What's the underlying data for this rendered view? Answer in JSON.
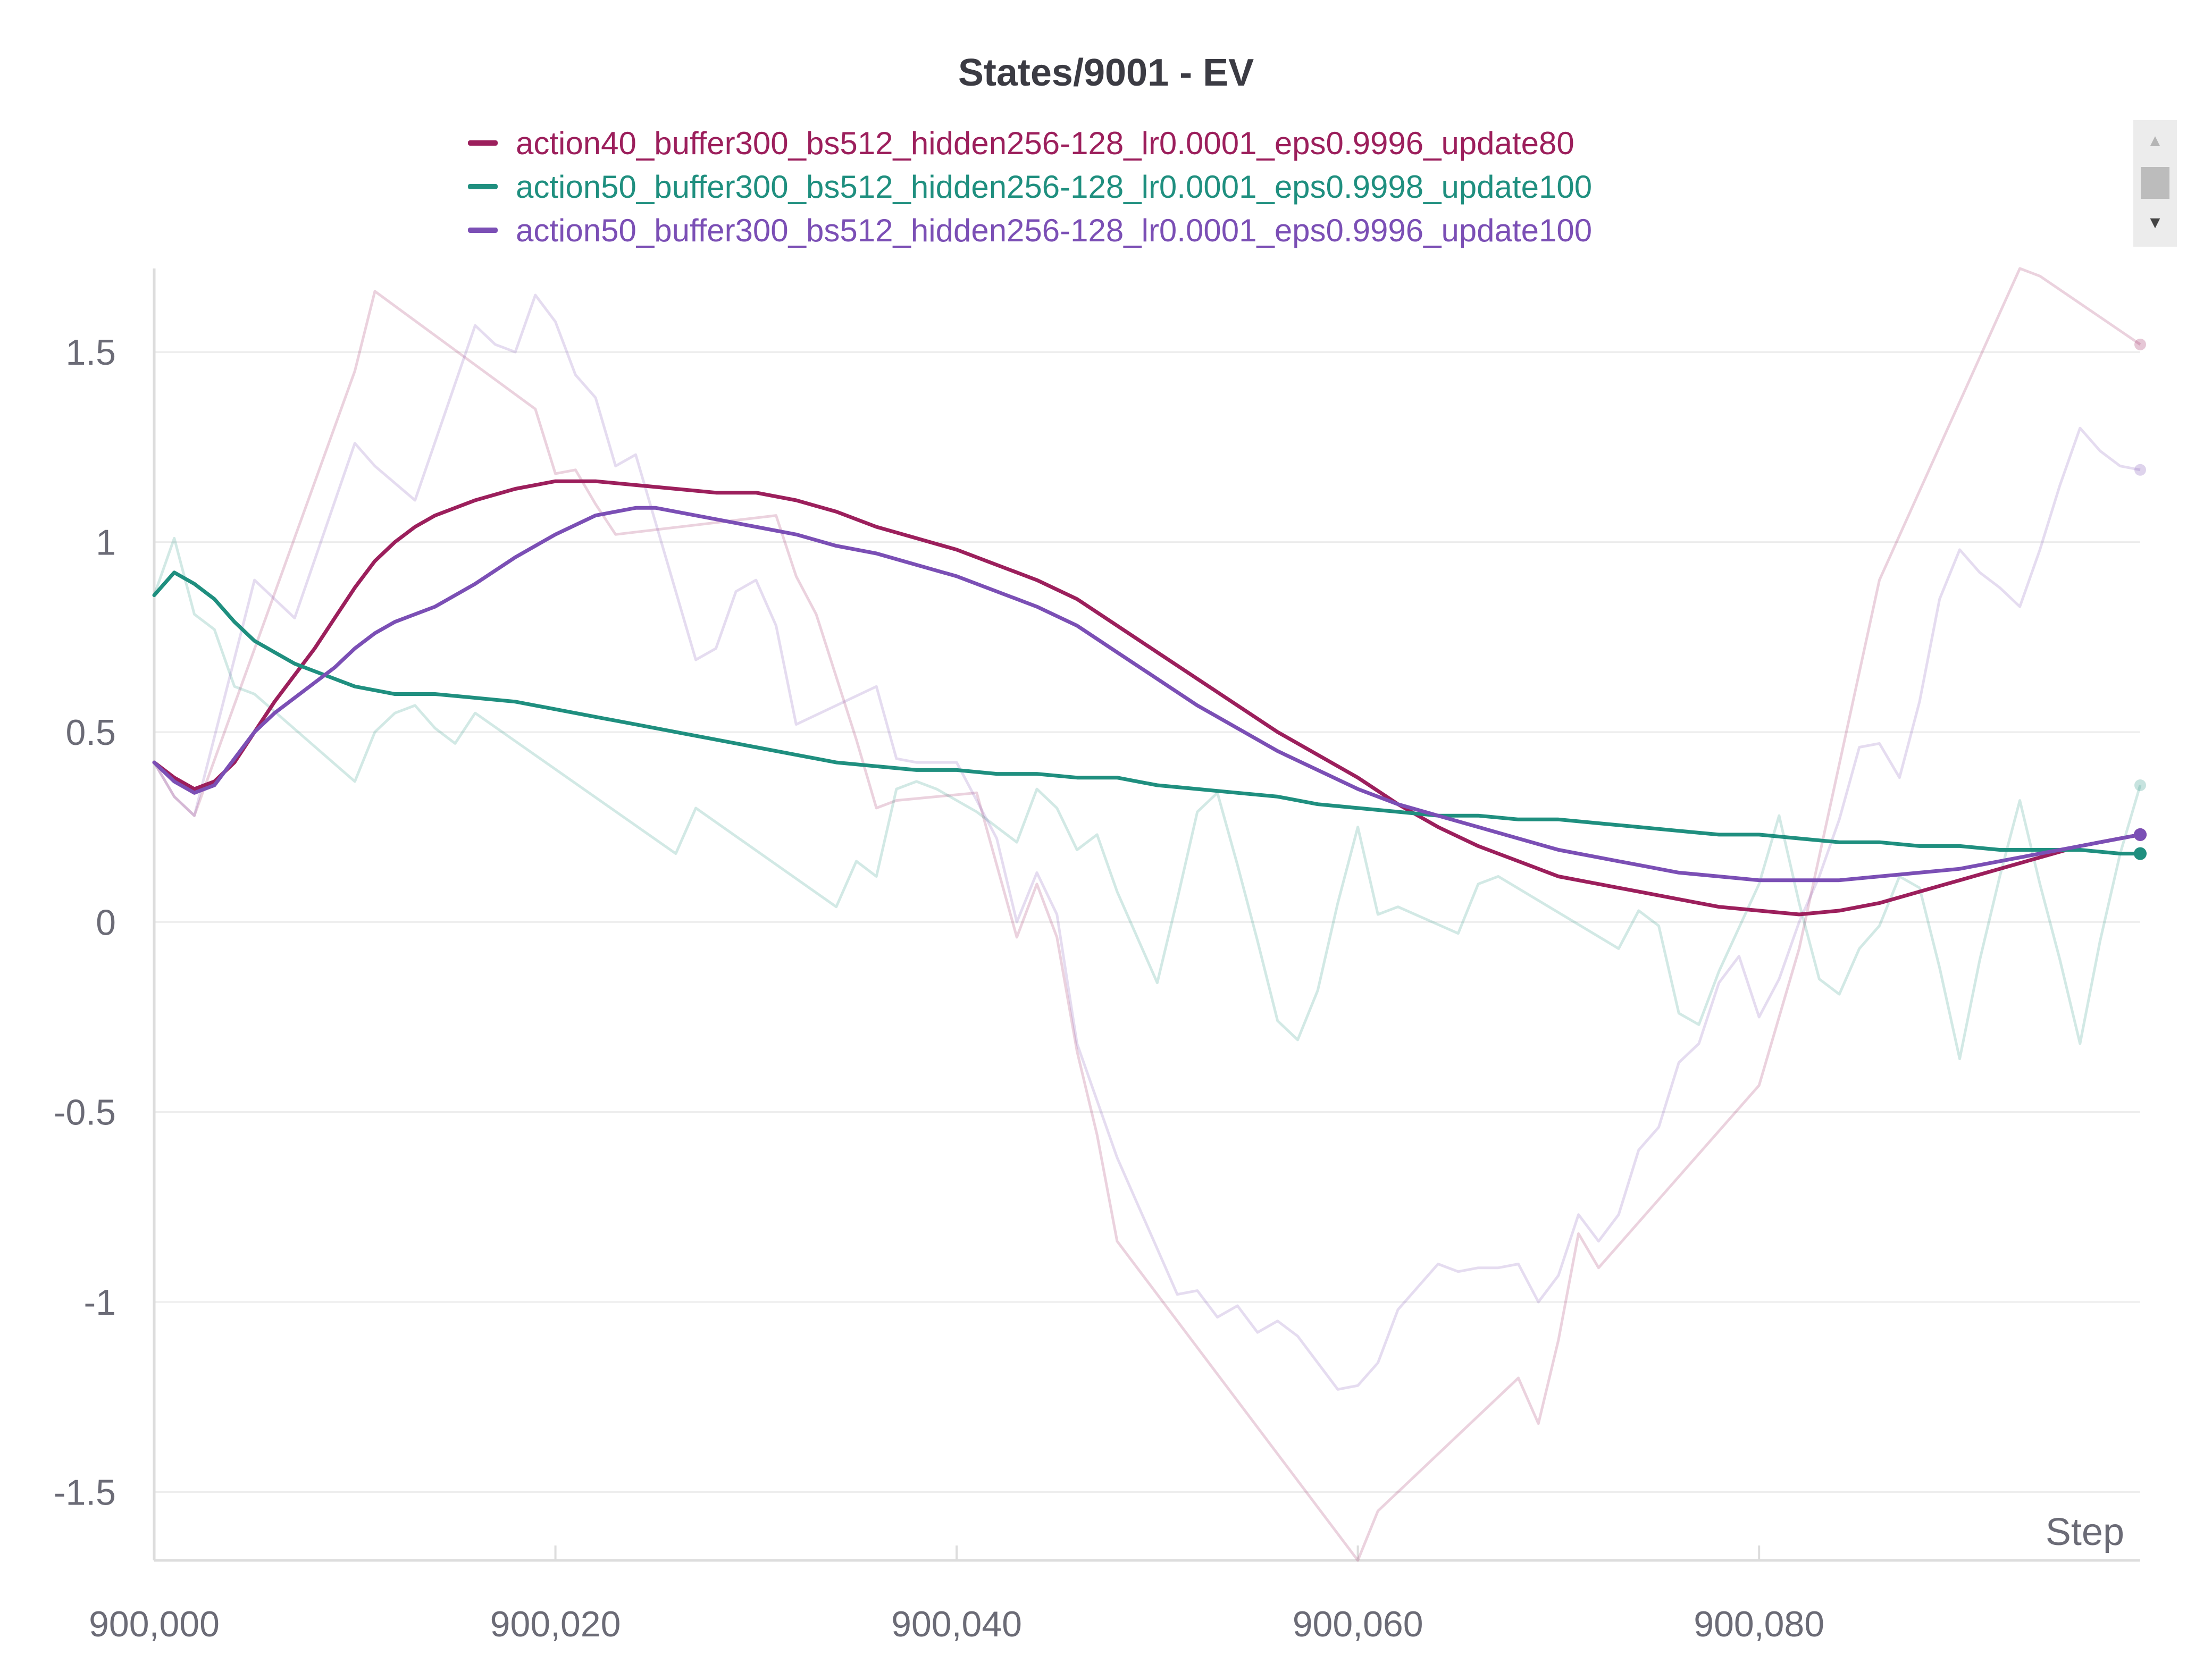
{
  "chart_data": {
    "type": "line",
    "title": "States/9001 - EV",
    "xlabel": "Step",
    "ylabel": "",
    "xlim": [
      900000,
      900099
    ],
    "ylim": [
      -1.68,
      1.72
    ],
    "grid": true,
    "legend_position": "top-center",
    "x_ticks": [
      900000,
      900020,
      900040,
      900060,
      900080
    ],
    "x_tick_labels": [
      "900,000",
      "900,020",
      "900,040",
      "900,060",
      "900,080"
    ],
    "y_ticks": [
      1.5,
      1,
      0.5,
      0,
      -0.5,
      -1,
      -1.5
    ],
    "y_tick_labels": [
      "1.5",
      "1",
      "0.5",
      "0",
      "-0.5",
      "-1",
      "-1.5"
    ],
    "series": [
      {
        "name": "action40_buffer300_bs512_hidden256-128_lr0.0001_eps0.9996_update80",
        "color": "#9c1f5c",
        "raw": {
          "x": [
            900000,
            900001,
            900002,
            900010,
            900011,
            900019,
            900020,
            900021,
            900022,
            900023,
            900031,
            900032,
            900033,
            900035,
            900036,
            900037,
            900041,
            900043,
            900044,
            900045,
            900046,
            900047,
            900048,
            900060,
            900061,
            900068,
            900069,
            900070,
            900071,
            900072,
            900073,
            900080,
            900082,
            900086,
            900093,
            900094,
            900099
          ],
          "y": [
            0.42,
            0.33,
            0.28,
            1.45,
            1.66,
            1.35,
            1.18,
            1.19,
            1.1,
            1.02,
            1.07,
            0.91,
            0.81,
            0.48,
            0.3,
            0.32,
            0.34,
            -0.04,
            0.1,
            -0.04,
            -0.34,
            -0.56,
            -0.84,
            -1.68,
            -1.55,
            -1.2,
            -1.32,
            -1.1,
            -0.82,
            -0.91,
            -0.85,
            -0.43,
            -0.07,
            0.9,
            1.72,
            1.7,
            1.52
          ]
        },
        "smoothed": {
          "x": [
            900000,
            900001,
            900002,
            900003,
            900004,
            900005,
            900006,
            900007,
            900008,
            900009,
            900010,
            900011,
            900012,
            900013,
            900014,
            900016,
            900018,
            900020,
            900022,
            900024,
            900026,
            900028,
            900030,
            900032,
            900034,
            900036,
            900038,
            900040,
            900042,
            900044,
            900046,
            900048,
            900050,
            900052,
            900054,
            900056,
            900058,
            900060,
            900062,
            900064,
            900066,
            900068,
            900070,
            900072,
            900074,
            900076,
            900078,
            900080,
            900082,
            900084,
            900086,
            900088,
            900090,
            900092,
            900094,
            900096,
            900099
          ],
          "y": [
            0.42,
            0.38,
            0.35,
            0.37,
            0.42,
            0.5,
            0.58,
            0.65,
            0.72,
            0.8,
            0.88,
            0.95,
            1.0,
            1.04,
            1.07,
            1.11,
            1.14,
            1.16,
            1.16,
            1.15,
            1.14,
            1.13,
            1.13,
            1.11,
            1.08,
            1.04,
            1.01,
            0.98,
            0.94,
            0.9,
            0.85,
            0.78,
            0.71,
            0.64,
            0.57,
            0.5,
            0.44,
            0.38,
            0.31,
            0.25,
            0.2,
            0.16,
            0.12,
            0.1,
            0.08,
            0.06,
            0.04,
            0.03,
            0.02,
            0.03,
            0.05,
            0.08,
            0.11,
            0.14,
            0.17,
            0.2,
            0.23
          ]
        }
      },
      {
        "name": "action50_buffer300_bs512_hidden256-128_lr0.0001_eps0.9998_update100",
        "color": "#1f8f7f",
        "raw": {
          "x": [
            900000,
            900001,
            900002,
            900003,
            900004,
            900005,
            900010,
            900011,
            900012,
            900013,
            900014,
            900015,
            900016,
            900026,
            900027,
            900034,
            900035,
            900036,
            900037,
            900038,
            900039,
            900041,
            900042,
            900043,
            900044,
            900045,
            900046,
            900047,
            900048,
            900050,
            900051,
            900052,
            900053,
            900054,
            900055,
            900056,
            900057,
            900058,
            900059,
            900060,
            900061,
            900062,
            900065,
            900066,
            900067,
            900073,
            900074,
            900075,
            900076,
            900077,
            900078,
            900080,
            900081,
            900082,
            900083,
            900084,
            900085,
            900086,
            900087,
            900088,
            900089,
            900090,
            900091,
            900092,
            900093,
            900094,
            900095,
            900096,
            900097,
            900098,
            900099
          ],
          "y": [
            0.86,
            1.01,
            0.81,
            0.77,
            0.62,
            0.6,
            0.37,
            0.5,
            0.55,
            0.57,
            0.51,
            0.47,
            0.55,
            0.18,
            0.3,
            0.04,
            0.16,
            0.12,
            0.35,
            0.37,
            0.35,
            0.29,
            0.25,
            0.21,
            0.35,
            0.3,
            0.19,
            0.23,
            0.08,
            -0.16,
            0.06,
            0.29,
            0.34,
            0.15,
            -0.05,
            -0.26,
            -0.31,
            -0.18,
            0.05,
            0.25,
            0.02,
            0.04,
            -0.03,
            0.1,
            0.12,
            -0.07,
            0.03,
            -0.01,
            -0.24,
            -0.27,
            -0.13,
            0.1,
            0.28,
            0.05,
            -0.15,
            -0.19,
            -0.07,
            -0.01,
            0.12,
            0.09,
            -0.12,
            -0.36,
            -0.1,
            0.12,
            0.32,
            0.1,
            -0.1,
            -0.32,
            -0.05,
            0.18,
            0.36
          ]
        },
        "smoothed": {
          "x": [
            900000,
            900001,
            900002,
            900003,
            900004,
            900005,
            900006,
            900007,
            900008,
            900009,
            900010,
            900011,
            900012,
            900014,
            900016,
            900018,
            900020,
            900022,
            900024,
            900026,
            900028,
            900030,
            900032,
            900034,
            900036,
            900038,
            900040,
            900042,
            900044,
            900046,
            900048,
            900050,
            900052,
            900054,
            900056,
            900058,
            900060,
            900062,
            900064,
            900066,
            900068,
            900070,
            900072,
            900074,
            900076,
            900078,
            900080,
            900082,
            900084,
            900086,
            900088,
            900090,
            900092,
            900094,
            900096,
            900098,
            900099
          ],
          "y": [
            0.86,
            0.92,
            0.89,
            0.85,
            0.79,
            0.74,
            0.71,
            0.68,
            0.66,
            0.64,
            0.62,
            0.61,
            0.6,
            0.6,
            0.59,
            0.58,
            0.56,
            0.54,
            0.52,
            0.5,
            0.48,
            0.46,
            0.44,
            0.42,
            0.41,
            0.4,
            0.4,
            0.39,
            0.39,
            0.38,
            0.38,
            0.36,
            0.35,
            0.34,
            0.33,
            0.31,
            0.3,
            0.29,
            0.28,
            0.28,
            0.27,
            0.27,
            0.26,
            0.25,
            0.24,
            0.23,
            0.23,
            0.22,
            0.21,
            0.21,
            0.2,
            0.2,
            0.19,
            0.19,
            0.19,
            0.18,
            0.18
          ]
        }
      },
      {
        "name": "action50_buffer300_bs512_hidden256-128_lr0.0001_eps0.9996_update100",
        "color": "#7b4fb5",
        "raw": {
          "x": [
            900000,
            900001,
            900002,
            900005,
            900006,
            900007,
            900010,
            900011,
            900013,
            900016,
            900017,
            900018,
            900019,
            900020,
            900021,
            900022,
            900023,
            900024,
            900027,
            900028,
            900029,
            900030,
            900031,
            900032,
            900036,
            900037,
            900038,
            900040,
            900042,
            900043,
            900044,
            900045,
            900046,
            900047,
            900048,
            900049,
            900050,
            900051,
            900052,
            900053,
            900054,
            900055,
            900056,
            900057,
            900058,
            900059,
            900060,
            900061,
            900062,
            900063,
            900064,
            900065,
            900066,
            900067,
            900068,
            900069,
            900070,
            900071,
            900072,
            900073,
            900074,
            900075,
            900076,
            900077,
            900078,
            900079,
            900080,
            900081,
            900082,
            900083,
            900084,
            900085,
            900086,
            900087,
            900088,
            900089,
            900090,
            900091,
            900092,
            900093,
            900094,
            900095,
            900096,
            900097,
            900098,
            900099
          ],
          "y": [
            0.42,
            0.33,
            0.28,
            0.9,
            0.85,
            0.8,
            1.26,
            1.2,
            1.11,
            1.57,
            1.52,
            1.5,
            1.65,
            1.58,
            1.44,
            1.38,
            1.2,
            1.23,
            0.69,
            0.72,
            0.87,
            0.9,
            0.78,
            0.52,
            0.62,
            0.43,
            0.42,
            0.42,
            0.22,
            0.0,
            0.13,
            0.02,
            -0.32,
            -0.47,
            -0.62,
            -0.74,
            -0.86,
            -0.98,
            -0.97,
            -1.04,
            -1.01,
            -1.08,
            -1.05,
            -1.09,
            -1.16,
            -1.23,
            -1.22,
            -1.16,
            -1.02,
            -0.96,
            -0.9,
            -0.92,
            -0.91,
            -0.91,
            -0.9,
            -1.0,
            -0.93,
            -0.77,
            -0.84,
            -0.77,
            -0.6,
            -0.54,
            -0.37,
            -0.32,
            -0.16,
            -0.09,
            -0.25,
            -0.15,
            0.0,
            0.12,
            0.27,
            0.46,
            0.47,
            0.38,
            0.58,
            0.85,
            0.98,
            0.92,
            0.88,
            0.83,
            0.98,
            1.15,
            1.3,
            1.24,
            1.2,
            1.19
          ]
        },
        "smoothed": {
          "x": [
            900000,
            900001,
            900002,
            900003,
            900004,
            900005,
            900006,
            900007,
            900008,
            900009,
            900010,
            900011,
            900012,
            900013,
            900014,
            900016,
            900018,
            900020,
            900022,
            900024,
            900025,
            900026,
            900028,
            900030,
            900032,
            900034,
            900036,
            900038,
            900040,
            900042,
            900044,
            900046,
            900048,
            900050,
            900052,
            900054,
            900056,
            900058,
            900060,
            900062,
            900064,
            900066,
            900068,
            900070,
            900072,
            900074,
            900076,
            900078,
            900080,
            900082,
            900084,
            900086,
            900088,
            900090,
            900092,
            900094,
            900096,
            900099
          ],
          "y": [
            0.42,
            0.37,
            0.34,
            0.36,
            0.43,
            0.5,
            0.55,
            0.59,
            0.63,
            0.67,
            0.72,
            0.76,
            0.79,
            0.81,
            0.83,
            0.89,
            0.96,
            1.02,
            1.07,
            1.09,
            1.09,
            1.08,
            1.06,
            1.04,
            1.02,
            0.99,
            0.97,
            0.94,
            0.91,
            0.87,
            0.83,
            0.78,
            0.71,
            0.64,
            0.57,
            0.51,
            0.45,
            0.4,
            0.35,
            0.31,
            0.28,
            0.25,
            0.22,
            0.19,
            0.17,
            0.15,
            0.13,
            0.12,
            0.11,
            0.11,
            0.11,
            0.12,
            0.13,
            0.14,
            0.16,
            0.18,
            0.2,
            0.23
          ]
        }
      }
    ]
  }
}
